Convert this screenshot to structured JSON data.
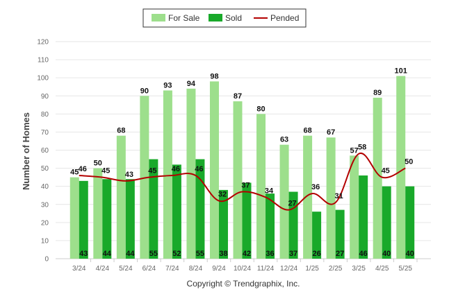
{
  "chart_data": {
    "type": "bar",
    "categories": [
      "3/24",
      "4/24",
      "5/24",
      "6/24",
      "7/24",
      "8/24",
      "9/24",
      "10/24",
      "11/24",
      "12/24",
      "1/25",
      "2/25",
      "3/25",
      "4/25",
      "5/25"
    ],
    "series": [
      {
        "name": "For Sale",
        "type": "bar",
        "color": "#9ddf8c",
        "values": [
          45,
          50,
          68,
          90,
          93,
          94,
          98,
          87,
          80,
          63,
          68,
          67,
          57,
          89,
          101
        ]
      },
      {
        "name": "Sold",
        "type": "bar",
        "color": "#19a92a",
        "values": [
          43,
          44,
          44,
          55,
          52,
          55,
          38,
          42,
          36,
          37,
          26,
          27,
          46,
          40,
          40
        ]
      },
      {
        "name": "Pended",
        "type": "line",
        "color": "#b30000",
        "values": [
          46,
          45,
          43,
          45,
          46,
          46,
          32,
          37,
          34,
          27,
          36,
          31,
          58,
          45,
          50
        ]
      }
    ],
    "ylabel": "Number of Homes",
    "ylim": [
      0,
      120
    ],
    "yticks": [
      0,
      10,
      20,
      30,
      40,
      50,
      60,
      70,
      80,
      90,
      100,
      110,
      120
    ],
    "grid": true,
    "legend": "top-center"
  },
  "footer": {
    "copyright": "Copyright © Trendgraphix, Inc."
  }
}
